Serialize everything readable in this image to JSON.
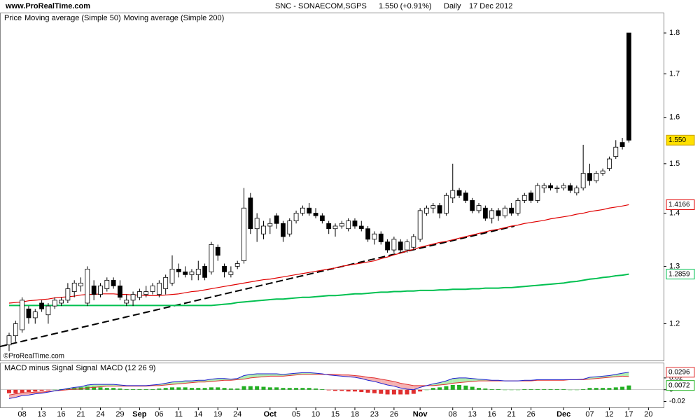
{
  "chart_data": [
    {
      "type": "candlestick",
      "site": "www.ProRealTime.com",
      "title": "SNC - SONAECOM,SGPS",
      "price_change": "1.550 (+0.91%)",
      "period": "Daily",
      "date": "17 Dec 2012",
      "copyright": "©ProRealTime.com",
      "name": "Price",
      "last_label": "1.550",
      "log_scale": true,
      "ylim": [
        1.14,
        1.85
      ],
      "yticks": [
        1.2,
        1.3,
        1.4,
        1.5,
        1.6,
        1.7,
        1.8
      ],
      "categories": [
        null,
        null,
        "08",
        null,
        null,
        "13",
        null,
        null,
        "16",
        null,
        null,
        "21",
        null,
        null,
        "24",
        null,
        null,
        "29",
        null,
        null,
        "Sep",
        null,
        null,
        "06",
        null,
        null,
        "11",
        null,
        null,
        "14",
        null,
        null,
        "19",
        null,
        null,
        "24",
        null,
        null,
        null,
        null,
        "Oct",
        null,
        null,
        null,
        "05",
        null,
        null,
        "10",
        null,
        null,
        "15",
        null,
        null,
        "18",
        null,
        null,
        "23",
        null,
        null,
        "26",
        null,
        null,
        null,
        "Nov",
        null,
        null,
        null,
        null,
        "08",
        null,
        null,
        "13",
        null,
        null,
        "16",
        null,
        null,
        "21",
        null,
        null,
        "26",
        null,
        null,
        null,
        null,
        "Dec",
        null,
        null,
        null,
        "07",
        null,
        null,
        "12",
        null,
        null,
        "17",
        null,
        null,
        "20"
      ],
      "open": [
        1.165,
        1.18,
        1.19,
        1.225,
        1.21,
        1.235,
        1.215,
        1.23,
        1.235,
        1.24,
        1.255,
        1.265,
        1.235,
        1.265,
        1.25,
        1.26,
        1.275,
        1.265,
        1.235,
        1.24,
        1.245,
        1.25,
        1.255,
        1.25,
        1.26,
        1.27,
        1.295,
        1.29,
        1.285,
        1.285,
        1.3,
        1.29,
        1.335,
        1.3,
        1.285,
        1.3,
        1.31,
        1.43,
        1.37,
        1.36,
        1.375,
        1.395,
        1.38,
        1.36,
        1.385,
        1.4,
        1.41,
        1.4,
        1.395,
        1.38,
        1.37,
        1.375,
        1.37,
        1.385,
        1.375,
        1.37,
        1.35,
        1.36,
        1.345,
        1.33,
        1.345,
        1.33,
        1.335,
        1.35,
        1.4,
        1.41,
        1.415,
        1.4,
        1.43,
        1.445,
        1.44,
        1.425,
        1.405,
        1.41,
        1.39,
        1.405,
        1.395,
        1.41,
        1.4,
        1.425,
        1.44,
        1.425,
        1.45,
        1.455,
        1.45,
        1.45,
        1.455,
        1.44,
        1.45,
        1.48,
        1.465,
        1.48,
        1.49,
        1.515,
        1.545,
        1.8,
        null,
        null,
        null
      ],
      "high": [
        1.185,
        1.205,
        1.245,
        1.23,
        1.225,
        1.24,
        1.235,
        1.245,
        1.245,
        1.27,
        1.275,
        1.28,
        1.3,
        1.275,
        1.27,
        1.28,
        1.28,
        1.275,
        1.25,
        1.255,
        1.26,
        1.265,
        1.27,
        1.275,
        1.285,
        1.32,
        1.305,
        1.3,
        1.295,
        1.31,
        1.305,
        1.345,
        1.34,
        1.305,
        1.3,
        1.31,
        1.45,
        1.44,
        1.4,
        1.385,
        1.39,
        1.4,
        1.385,
        1.39,
        1.405,
        1.415,
        1.42,
        1.41,
        1.4,
        1.385,
        1.38,
        1.385,
        1.39,
        1.39,
        1.385,
        1.375,
        1.365,
        1.365,
        1.35,
        1.355,
        1.35,
        1.35,
        1.36,
        1.41,
        1.415,
        1.42,
        1.42,
        1.44,
        1.5,
        1.45,
        1.445,
        1.43,
        1.42,
        1.415,
        1.41,
        1.41,
        1.415,
        1.42,
        1.43,
        1.44,
        1.445,
        1.46,
        1.46,
        1.46,
        1.455,
        1.46,
        1.46,
        1.455,
        1.54,
        1.5,
        1.485,
        1.49,
        1.515,
        1.55,
        1.555,
        1.8,
        null,
        null,
        null
      ],
      "low": [
        1.155,
        1.17,
        1.185,
        1.2,
        1.2,
        1.22,
        1.2,
        1.225,
        1.23,
        1.235,
        1.245,
        1.255,
        1.23,
        1.24,
        1.245,
        1.255,
        1.26,
        1.24,
        1.23,
        1.23,
        1.24,
        1.245,
        1.25,
        1.245,
        1.25,
        1.265,
        1.28,
        1.28,
        1.275,
        1.275,
        1.275,
        1.285,
        1.31,
        1.28,
        1.28,
        1.295,
        1.305,
        1.36,
        1.345,
        1.35,
        1.36,
        1.37,
        1.345,
        1.355,
        1.38,
        1.395,
        1.395,
        1.39,
        1.38,
        1.36,
        1.355,
        1.37,
        1.365,
        1.37,
        1.365,
        1.345,
        1.34,
        1.34,
        1.325,
        1.325,
        1.325,
        1.325,
        1.33,
        1.345,
        1.395,
        1.4,
        1.39,
        1.395,
        1.42,
        1.43,
        1.42,
        1.4,
        1.4,
        1.385,
        1.38,
        1.385,
        1.39,
        1.395,
        1.395,
        1.42,
        1.42,
        1.42,
        1.44,
        1.445,
        1.44,
        1.445,
        1.44,
        1.435,
        1.445,
        1.455,
        1.46,
        1.475,
        1.485,
        1.51,
        1.53,
        1.545,
        null,
        null,
        null
      ],
      "close": [
        1.18,
        1.2,
        1.24,
        1.21,
        1.22,
        1.225,
        1.23,
        1.24,
        1.24,
        1.26,
        1.27,
        1.27,
        1.295,
        1.25,
        1.265,
        1.275,
        1.265,
        1.245,
        1.24,
        1.25,
        1.255,
        1.255,
        1.265,
        1.27,
        1.28,
        1.295,
        1.29,
        1.285,
        1.29,
        1.295,
        1.28,
        1.34,
        1.32,
        1.29,
        1.29,
        1.305,
        1.41,
        1.37,
        1.39,
        1.375,
        1.38,
        1.38,
        1.355,
        1.385,
        1.4,
        1.41,
        1.4,
        1.395,
        1.385,
        1.37,
        1.375,
        1.38,
        1.385,
        1.375,
        1.37,
        1.35,
        1.36,
        1.345,
        1.33,
        1.35,
        1.33,
        1.345,
        1.355,
        1.405,
        1.41,
        1.415,
        1.4,
        1.435,
        1.445,
        1.435,
        1.425,
        1.405,
        1.415,
        1.39,
        1.405,
        1.395,
        1.41,
        1.4,
        1.425,
        1.435,
        1.425,
        1.455,
        1.455,
        1.45,
        1.45,
        1.455,
        1.445,
        1.45,
        1.48,
        1.465,
        1.48,
        1.485,
        1.51,
        1.535,
        1.536,
        1.55,
        null,
        null,
        null
      ],
      "series": [
        {
          "name": "Moving average (Simple 50)",
          "color": "#e00000",
          "values": [
            1.235,
            1.236,
            1.237,
            1.239,
            1.24,
            1.241,
            1.242,
            1.244,
            1.245,
            1.246,
            1.247,
            1.249,
            1.25,
            1.25,
            1.251,
            1.251,
            1.251,
            1.25,
            1.25,
            1.249,
            1.249,
            1.248,
            1.248,
            1.248,
            1.249,
            1.25,
            1.251,
            1.253,
            1.255,
            1.256,
            1.258,
            1.26,
            1.262,
            1.264,
            1.266,
            1.268,
            1.27,
            1.272,
            1.274,
            1.276,
            1.277,
            1.279,
            1.281,
            1.283,
            1.285,
            1.287,
            1.289,
            1.291,
            1.293,
            1.295,
            1.297,
            1.3,
            1.302,
            1.304,
            1.306,
            1.308,
            1.31,
            1.314,
            1.317,
            1.321,
            1.324,
            1.328,
            1.331,
            1.335,
            1.338,
            1.341,
            1.344,
            1.346,
            1.349,
            1.352,
            1.355,
            1.358,
            1.361,
            1.364,
            1.367,
            1.369,
            1.372,
            1.375,
            1.377,
            1.38,
            1.382,
            1.384,
            1.386,
            1.389,
            1.391,
            1.393,
            1.395,
            1.398,
            1.4,
            1.403,
            1.405,
            1.407,
            1.41,
            1.412,
            1.414,
            1.4166,
            null,
            null,
            null
          ]
        },
        {
          "name": "Moving average (Simple 200)",
          "color": "#00c050",
          "values": [
            1.231,
            1.231,
            1.231,
            1.231,
            1.231,
            1.231,
            1.231,
            1.231,
            1.231,
            1.231,
            1.231,
            1.231,
            1.231,
            1.231,
            1.231,
            1.231,
            1.231,
            1.231,
            1.231,
            1.231,
            1.231,
            1.231,
            1.231,
            1.231,
            1.231,
            1.231,
            1.231,
            1.231,
            1.231,
            1.231,
            1.231,
            1.231,
            1.232,
            1.233,
            1.234,
            1.236,
            1.237,
            1.238,
            1.239,
            1.24,
            1.241,
            1.242,
            1.242,
            1.243,
            1.244,
            1.245,
            1.245,
            1.246,
            1.247,
            1.248,
            1.248,
            1.249,
            1.25,
            1.251,
            1.251,
            1.252,
            1.253,
            1.254,
            1.254,
            1.255,
            1.255,
            1.256,
            1.256,
            1.257,
            1.257,
            1.257,
            1.258,
            1.258,
            1.259,
            1.259,
            1.259,
            1.26,
            1.26,
            1.261,
            1.261,
            1.261,
            1.262,
            1.262,
            1.263,
            1.264,
            1.265,
            1.266,
            1.267,
            1.268,
            1.269,
            1.27,
            1.272,
            1.273,
            1.275,
            1.277,
            1.278,
            1.28,
            1.281,
            1.283,
            1.284,
            1.2859,
            null,
            null,
            null
          ]
        }
      ]
    },
    {
      "type": "macd",
      "ylim": [
        -0.03,
        0.046
      ],
      "yticks": [
        0.02,
        0,
        -0.02
      ],
      "series": [
        {
          "name": "MACD minus Signal",
          "color": "#22b022",
          "values": [
            -0.006,
            -0.006,
            -0.005,
            -0.004,
            -0.003,
            -0.002,
            -0.001,
            0,
            0.001,
            0.002,
            0.003,
            0.004,
            0.005,
            0.005,
            0.004,
            0.003,
            0.003,
            0.002,
            0.001,
            0.001,
            0.001,
            0.001,
            0.001,
            0.002,
            0.003,
            0.004,
            0.004,
            0.004,
            0.003,
            0.003,
            0.003,
            0.004,
            0.004,
            0.003,
            0.002,
            0.002,
            0.006,
            0.006,
            0.006,
            0.005,
            0.004,
            0.004,
            0.003,
            0.003,
            0.003,
            0.003,
            0.003,
            0.002,
            0.001,
            -0.001,
            -0.002,
            -0.002,
            -0.003,
            -0.003,
            -0.004,
            -0.005,
            -0.006,
            -0.007,
            -0.008,
            -0.008,
            -0.008,
            -0.008,
            -0.007,
            -0.003,
            0,
            0.003,
            0.004,
            0.006,
            0.008,
            0.008,
            0.007,
            0.005,
            0.003,
            0.002,
            0.001,
            0.001,
            0,
            0,
            0,
            0.001,
            0.001,
            0.001,
            0.001,
            0.001,
            0.001,
            0.001,
            0,
            0,
            0.001,
            0.003,
            0.003,
            0.003,
            0.003,
            0.004,
            0.005,
            0.0072,
            null,
            null,
            null
          ]
        },
        {
          "name": "Signal",
          "color": "#e03030",
          "values": [
            -0.009,
            -0.007,
            -0.005,
            -0.005,
            -0.004,
            -0.004,
            -0.003,
            -0.002,
            -0.001,
            0,
            0.001,
            0.001,
            0.003,
            0.004,
            0.005,
            0.006,
            0.006,
            0.006,
            0.006,
            0.006,
            0.006,
            0.006,
            0.007,
            0.007,
            0.008,
            0.009,
            0.01,
            0.011,
            0.012,
            0.013,
            0.013,
            0.014,
            0.015,
            0.016,
            0.016,
            0.017,
            0.018,
            0.02,
            0.021,
            0.022,
            0.023,
            0.023,
            0.023,
            0.024,
            0.025,
            0.026,
            0.026,
            0.026,
            0.026,
            0.026,
            0.026,
            0.025,
            0.025,
            0.024,
            0.023,
            0.021,
            0.02,
            0.018,
            0.016,
            0.014,
            0.011,
            0.009,
            0.007,
            0.007,
            0.007,
            0.007,
            0.008,
            0.009,
            0.011,
            0.012,
            0.013,
            0.014,
            0.015,
            0.015,
            0.015,
            0.015,
            0.015,
            0.015,
            0.015,
            0.015,
            0.015,
            0.016,
            0.016,
            0.016,
            0.016,
            0.016,
            0.017,
            0.017,
            0.017,
            0.018,
            0.019,
            0.02,
            0.021,
            0.022,
            0.023,
            0.0224,
            null,
            null,
            null
          ]
        },
        {
          "name": "MACD (12 26 9)",
          "color": "#2020d0",
          "values": [
            -0.015,
            -0.013,
            -0.01,
            -0.009,
            -0.007,
            -0.006,
            -0.004,
            -0.002,
            0,
            0.002,
            0.004,
            0.005,
            0.008,
            0.009,
            0.009,
            0.009,
            0.009,
            0.008,
            0.007,
            0.007,
            0.007,
            0.007,
            0.008,
            0.009,
            0.011,
            0.013,
            0.014,
            0.015,
            0.015,
            0.016,
            0.016,
            0.018,
            0.019,
            0.019,
            0.018,
            0.019,
            0.024,
            0.026,
            0.027,
            0.027,
            0.027,
            0.027,
            0.026,
            0.027,
            0.028,
            0.029,
            0.029,
            0.028,
            0.027,
            0.025,
            0.024,
            0.023,
            0.022,
            0.021,
            0.019,
            0.016,
            0.014,
            0.011,
            0.008,
            0.006,
            0.003,
            0.001,
            0,
            0.004,
            0.007,
            0.01,
            0.012,
            0.015,
            0.019,
            0.02,
            0.02,
            0.019,
            0.018,
            0.017,
            0.016,
            0.016,
            0.015,
            0.015,
            0.015,
            0.016,
            0.016,
            0.017,
            0.017,
            0.017,
            0.017,
            0.017,
            0.017,
            0.017,
            0.018,
            0.021,
            0.022,
            0.023,
            0.024,
            0.026,
            0.028,
            0.0296,
            null,
            null,
            null
          ]
        }
      ]
    }
  ]
}
